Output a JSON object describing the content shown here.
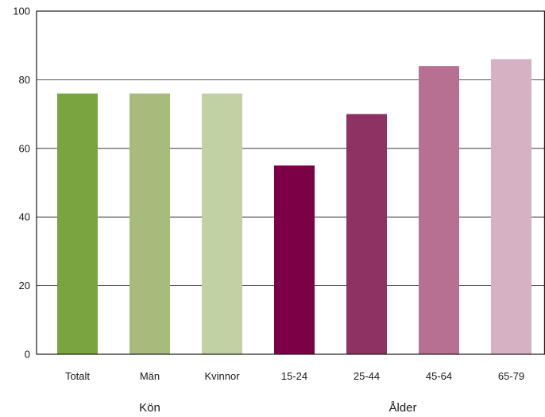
{
  "chart_data": {
    "type": "bar",
    "categories": [
      "Totalt",
      "Män",
      "Kvinnor",
      "15-24",
      "25-44",
      "45-64",
      "65-79"
    ],
    "values": [
      76,
      76,
      76,
      55,
      70,
      84,
      86
    ],
    "bar_colors": [
      "#7aa43f",
      "#a6bb7c",
      "#c2d1a3",
      "#7b0046",
      "#8e3264",
      "#b87092",
      "#d6b0c3"
    ],
    "groups": [
      {
        "label": "Kön",
        "categories": [
          "Totalt",
          "Män",
          "Kvinnor"
        ]
      },
      {
        "label": "Ålder",
        "categories": [
          "15-24",
          "25-44",
          "45-64",
          "65-79"
        ]
      }
    ],
    "ylim": [
      0,
      100
    ],
    "yticks": [
      0,
      20,
      40,
      60,
      80,
      100
    ],
    "grid": true,
    "title": "",
    "xlabel": "",
    "ylabel": ""
  }
}
